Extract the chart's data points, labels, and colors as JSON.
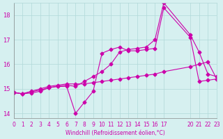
{
  "xlabel": "Windchill (Refroidissement éolien,°C)",
  "ylabel": "",
  "bg_color": "#d6f0f0",
  "line_color": "#cc00aa",
  "xlim": [
    0,
    23
  ],
  "ylim": [
    13.8,
    18.5
  ],
  "xticks": [
    0,
    1,
    2,
    3,
    4,
    5,
    6,
    7,
    8,
    9,
    10,
    11,
    12,
    13,
    14,
    15,
    16,
    17,
    20,
    21,
    22,
    23
  ],
  "yticks": [
    14,
    15,
    16,
    17,
    18
  ],
  "line1_x": [
    0,
    1,
    2,
    3,
    4,
    5,
    6,
    7,
    8,
    9,
    10,
    11,
    12,
    13,
    14,
    15,
    16,
    17,
    20,
    21,
    22,
    23
  ],
  "line1_y": [
    14.85,
    14.8,
    14.83,
    14.9,
    15.05,
    15.1,
    15.1,
    14.0,
    14.45,
    14.9,
    16.45,
    16.6,
    16.7,
    16.55,
    16.55,
    16.6,
    16.65,
    18.3,
    17.1,
    15.3,
    15.35,
    15.4
  ],
  "line2_x": [
    0,
    1,
    2,
    3,
    4,
    5,
    6,
    7,
    8,
    9,
    10,
    11,
    12,
    13,
    14,
    15,
    16,
    17,
    20,
    21,
    22,
    23
  ],
  "line2_y": [
    14.85,
    14.8,
    14.9,
    15.0,
    15.1,
    15.15,
    15.2,
    15.2,
    15.2,
    15.25,
    15.3,
    15.35,
    15.4,
    15.45,
    15.5,
    15.55,
    15.6,
    15.7,
    15.9,
    16.0,
    16.1,
    15.4
  ],
  "line3_x": [
    0,
    1,
    2,
    3,
    4,
    5,
    6,
    7,
    8,
    9,
    10,
    11,
    12,
    13,
    14,
    15,
    16,
    17,
    20,
    21,
    22,
    23
  ],
  "line3_y": [
    14.85,
    14.8,
    14.88,
    14.95,
    15.05,
    15.1,
    15.15,
    15.1,
    15.3,
    15.5,
    15.7,
    16.0,
    16.5,
    16.6,
    16.65,
    16.7,
    17.0,
    18.5,
    17.2,
    16.5,
    15.6,
    15.5
  ]
}
